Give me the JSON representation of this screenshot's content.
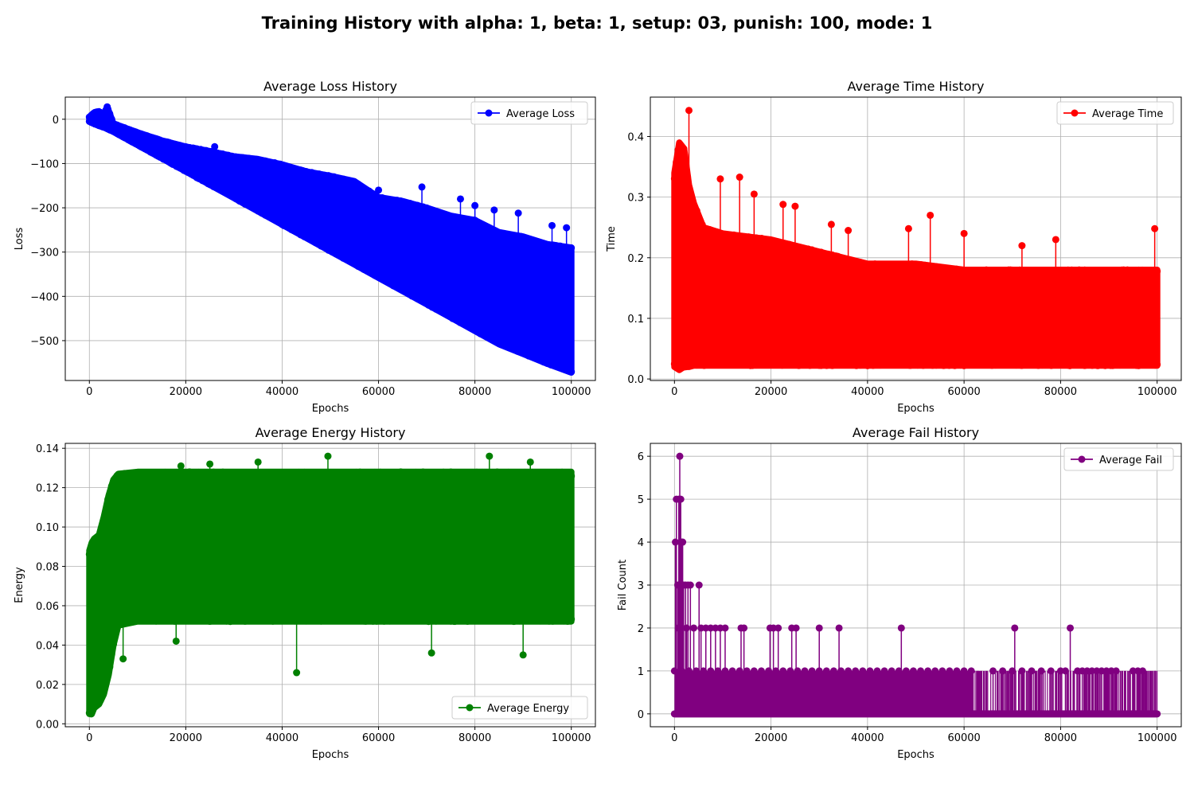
{
  "figure": {
    "suptitle": "Training History with alpha: 1, beta: 1, setup: 03, punish: 100, mode: 1"
  },
  "chart_data": [
    {
      "type": "line",
      "title": "Average Loss History",
      "xlabel": "Epochs",
      "ylabel": "Loss",
      "xlim": [
        -5000,
        105000
      ],
      "ylim": [
        -590,
        50
      ],
      "xticks": [
        0,
        20000,
        40000,
        60000,
        80000,
        100000
      ],
      "xtick_labels": [
        "0",
        "20000",
        "40000",
        "60000",
        "80000",
        "100000"
      ],
      "yticks": [
        0,
        -100,
        -200,
        -300,
        -400,
        -500
      ],
      "ytick_labels": [
        "0",
        "−100",
        "−200",
        "−300",
        "−400",
        "−500"
      ],
      "grid": true,
      "legend": "upper right",
      "series": [
        {
          "name": "Average Loss",
          "color": "#0000ff",
          "marker": "o",
          "x": [
            0,
            1000,
            2000,
            3000,
            3700,
            5000,
            10000,
            15000,
            20000,
            25000,
            30000,
            35000,
            40000,
            45000,
            50000,
            55000,
            60000,
            65000,
            70000,
            75000,
            80000,
            85000,
            90000,
            95000,
            100000
          ],
          "upper": [
            5,
            15,
            18,
            10,
            28,
            -10,
            -30,
            -48,
            -62,
            -72,
            -84,
            -90,
            -102,
            -118,
            -128,
            -140,
            -176,
            -185,
            -200,
            -218,
            -228,
            -255,
            -265,
            -282,
            -290
          ],
          "lower": [
            -5,
            -10,
            -15,
            -18,
            -22,
            -28,
            -58,
            -88,
            -118,
            -148,
            -178,
            -208,
            -238,
            -268,
            -298,
            -328,
            -358,
            -388,
            -418,
            -448,
            -478,
            -508,
            -530,
            -552,
            -572
          ],
          "outliers": [
            [
              3700,
              28
            ],
            [
              26000,
              -62
            ],
            [
              45000,
              -118
            ],
            [
              60000,
              -160
            ],
            [
              69000,
              -153
            ],
            [
              77000,
              -180
            ],
            [
              80000,
              -195
            ],
            [
              84000,
              -205
            ],
            [
              89000,
              -212
            ],
            [
              96000,
              -240
            ],
            [
              99000,
              -245
            ]
          ]
        }
      ]
    },
    {
      "type": "line",
      "title": "Average Time History",
      "xlabel": "Epochs",
      "ylabel": "Time",
      "xlim": [
        -5000,
        105000
      ],
      "ylim": [
        -0.0025,
        0.465
      ],
      "xticks": [
        0,
        20000,
        40000,
        60000,
        80000,
        100000
      ],
      "xtick_labels": [
        "0",
        "20000",
        "40000",
        "60000",
        "80000",
        "100000"
      ],
      "yticks": [
        0.0,
        0.1,
        0.2,
        0.3,
        0.4
      ],
      "ytick_labels": [
        "0.0",
        "0.1",
        "0.2",
        "0.3",
        "0.4"
      ],
      "grid": true,
      "legend": "upper right",
      "series": [
        {
          "name": "Average Time",
          "color": "#ff0000",
          "marker": "o",
          "x": [
            0,
            1000,
            2000,
            3000,
            4000,
            6000,
            10000,
            20000,
            30000,
            40000,
            50000,
            60000,
            70000,
            80000,
            90000,
            100000
          ],
          "upper": [
            0.34,
            0.39,
            0.38,
            0.32,
            0.29,
            0.25,
            0.24,
            0.23,
            0.21,
            0.19,
            0.19,
            0.18,
            0.18,
            0.18,
            0.18,
            0.18
          ],
          "lower": [
            0.02,
            0.015,
            0.02,
            0.02,
            0.022,
            0.022,
            0.022,
            0.022,
            0.022,
            0.022,
            0.022,
            0.022,
            0.022,
            0.022,
            0.022,
            0.022
          ],
          "outliers": [
            [
              3000,
              0.443
            ],
            [
              9500,
              0.33
            ],
            [
              13500,
              0.333
            ],
            [
              16500,
              0.305
            ],
            [
              22500,
              0.288
            ],
            [
              25000,
              0.285
            ],
            [
              32500,
              0.255
            ],
            [
              36000,
              0.245
            ],
            [
              48500,
              0.248
            ],
            [
              53000,
              0.27
            ],
            [
              60000,
              0.24
            ],
            [
              72000,
              0.22
            ],
            [
              79000,
              0.23
            ],
            [
              99500,
              0.248
            ]
          ]
        }
      ]
    },
    {
      "type": "line",
      "title": "Average Energy History",
      "xlabel": "Epochs",
      "ylabel": "Energy",
      "xlim": [
        -5000,
        105000
      ],
      "ylim": [
        -0.0015,
        0.1425
      ],
      "xticks": [
        0,
        20000,
        40000,
        60000,
        80000,
        100000
      ],
      "xtick_labels": [
        "0",
        "20000",
        "40000",
        "60000",
        "80000",
        "100000"
      ],
      "yticks": [
        0.0,
        0.02,
        0.04,
        0.06,
        0.08,
        0.1,
        0.12,
        0.14
      ],
      "ytick_labels": [
        "0.00",
        "0.02",
        "0.04",
        "0.06",
        "0.08",
        "0.10",
        "0.12",
        "0.14"
      ],
      "grid": true,
      "legend": "lower right",
      "series": [
        {
          "name": "Average Energy",
          "color": "#008000",
          "marker": "o",
          "x": [
            0,
            500,
            1000,
            2000,
            3000,
            4000,
            5000,
            6000,
            10000,
            20000,
            30000,
            40000,
            50000,
            60000,
            70000,
            80000,
            90000,
            100000
          ],
          "upper": [
            0.088,
            0.092,
            0.094,
            0.096,
            0.105,
            0.116,
            0.124,
            0.127,
            0.128,
            0.128,
            0.128,
            0.128,
            0.128,
            0.128,
            0.128,
            0.128,
            0.128,
            0.128
          ],
          "lower": [
            0.005,
            0.005,
            0.008,
            0.01,
            0.015,
            0.025,
            0.04,
            0.05,
            0.052,
            0.052,
            0.052,
            0.052,
            0.052,
            0.052,
            0.052,
            0.052,
            0.052,
            0.052
          ],
          "outliers": [
            [
              19000,
              0.131
            ],
            [
              25000,
              0.132
            ],
            [
              35000,
              0.133
            ],
            [
              49500,
              0.136
            ],
            [
              83000,
              0.136
            ],
            [
              91500,
              0.133
            ],
            [
              7000,
              0.033
            ],
            [
              43000,
              0.026
            ],
            [
              71000,
              0.036
            ],
            [
              90000,
              0.035
            ],
            [
              18000,
              0.042
            ]
          ]
        }
      ]
    },
    {
      "type": "line",
      "title": "Average Fail History",
      "xlabel": "Epochs",
      "ylabel": "Fail Count",
      "xlim": [
        -5000,
        105000
      ],
      "ylim": [
        -0.3,
        6.3
      ],
      "xticks": [
        0,
        20000,
        40000,
        60000,
        80000,
        100000
      ],
      "xtick_labels": [
        "0",
        "20000",
        "40000",
        "60000",
        "80000",
        "100000"
      ],
      "yticks": [
        0,
        1,
        2,
        3,
        4,
        5,
        6
      ],
      "ytick_labels": [
        "0",
        "1",
        "2",
        "3",
        "4",
        "5",
        "6"
      ],
      "grid": true,
      "legend": "upper right",
      "series": [
        {
          "name": "Average Fail",
          "color": "#800080",
          "marker": "o",
          "dense": {
            "xmin": 0,
            "xmax": 100000,
            "band_until": 62000,
            "values": [
              0,
              1
            ]
          },
          "spikes": [
            [
              200,
              4
            ],
            [
              400,
              5
            ],
            [
              700,
              3
            ],
            [
              900,
              5
            ],
            [
              1100,
              6
            ],
            [
              1300,
              5
            ],
            [
              1500,
              4
            ],
            [
              1700,
              4
            ],
            [
              1900,
              3
            ],
            [
              2300,
              3
            ],
            [
              2800,
              3
            ],
            [
              3300,
              3
            ],
            [
              5100,
              3
            ],
            [
              800,
              2
            ],
            [
              2500,
              2
            ],
            [
              4000,
              2
            ],
            [
              5500,
              2
            ],
            [
              6500,
              2
            ],
            [
              7500,
              2
            ],
            [
              8500,
              2
            ],
            [
              9500,
              2
            ],
            [
              10500,
              2
            ],
            [
              13800,
              2
            ],
            [
              14400,
              2
            ],
            [
              19800,
              2
            ],
            [
              20500,
              2
            ],
            [
              21500,
              2
            ],
            [
              24300,
              2
            ],
            [
              25200,
              2
            ],
            [
              30000,
              2
            ],
            [
              34100,
              2
            ],
            [
              47000,
              2
            ],
            [
              70500,
              2
            ],
            [
              82000,
              2
            ]
          ],
          "ones": [
            66000,
            68000,
            70000,
            72000,
            74000,
            76000,
            78000,
            80000,
            81000,
            83500,
            84500,
            85500,
            86500,
            87500,
            88500,
            89500,
            90500,
            91500,
            95000,
            96000,
            97000
          ]
        }
      ]
    }
  ]
}
